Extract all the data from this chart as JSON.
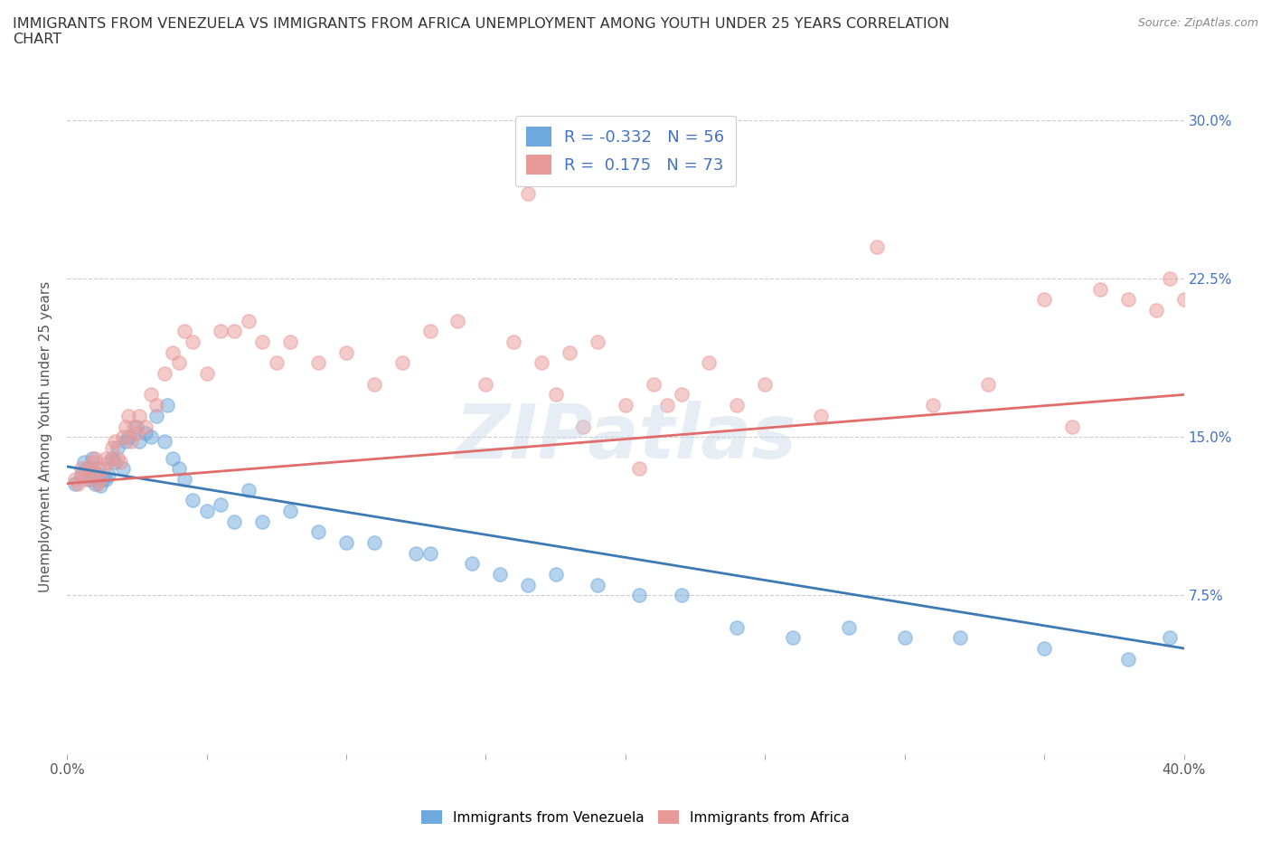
{
  "title": "IMMIGRANTS FROM VENEZUELA VS IMMIGRANTS FROM AFRICA UNEMPLOYMENT AMONG YOUTH UNDER 25 YEARS CORRELATION\nCHART",
  "source": "Source: ZipAtlas.com",
  "ylabel": "Unemployment Among Youth under 25 years",
  "watermark": "ZIPatlas",
  "R_venezuela": -0.332,
  "N_venezuela": 56,
  "R_africa": 0.175,
  "N_africa": 73,
  "xlim": [
    0.0,
    0.4
  ],
  "ylim": [
    0.0,
    0.3
  ],
  "xtick_positions": [
    0.0,
    0.05,
    0.1,
    0.15,
    0.2,
    0.25,
    0.3,
    0.35,
    0.4
  ],
  "xtick_labels_shown": {
    "0.0": "0.0%",
    "0.40": "40.0%"
  },
  "yticks": [
    0.075,
    0.15,
    0.225,
    0.3
  ],
  "ytick_labels": [
    "7.5%",
    "15.0%",
    "22.5%",
    "30.0%"
  ],
  "color_venezuela": "#6fa8dc",
  "color_africa": "#ea9999",
  "color_ven_line": "#3d7ab5",
  "color_afr_line": "#e06c6c",
  "legend_label_venezuela": "Immigrants from Venezuela",
  "legend_label_africa": "Immigrants from Africa",
  "ven_x": [
    0.003,
    0.005,
    0.006,
    0.007,
    0.008,
    0.009,
    0.01,
    0.01,
    0.011,
    0.012,
    0.013,
    0.014,
    0.015,
    0.016,
    0.017,
    0.018,
    0.02,
    0.021,
    0.022,
    0.025,
    0.026,
    0.028,
    0.03,
    0.032,
    0.035,
    0.036,
    0.038,
    0.04,
    0.042,
    0.045,
    0.05,
    0.055,
    0.06,
    0.065,
    0.07,
    0.08,
    0.09,
    0.1,
    0.11,
    0.125,
    0.13,
    0.145,
    0.155,
    0.165,
    0.175,
    0.19,
    0.205,
    0.22,
    0.24,
    0.26,
    0.28,
    0.3,
    0.32,
    0.35,
    0.38,
    0.395
  ],
  "ven_y": [
    0.128,
    0.132,
    0.138,
    0.135,
    0.13,
    0.14,
    0.128,
    0.133,
    0.135,
    0.127,
    0.13,
    0.13,
    0.132,
    0.14,
    0.138,
    0.145,
    0.135,
    0.148,
    0.15,
    0.155,
    0.148,
    0.152,
    0.15,
    0.16,
    0.148,
    0.165,
    0.14,
    0.135,
    0.13,
    0.12,
    0.115,
    0.118,
    0.11,
    0.125,
    0.11,
    0.115,
    0.105,
    0.1,
    0.1,
    0.095,
    0.095,
    0.09,
    0.085,
    0.08,
    0.085,
    0.08,
    0.075,
    0.075,
    0.06,
    0.055,
    0.06,
    0.055,
    0.055,
    0.05,
    0.045,
    0.055
  ],
  "afr_x": [
    0.003,
    0.004,
    0.005,
    0.006,
    0.007,
    0.008,
    0.009,
    0.01,
    0.01,
    0.011,
    0.012,
    0.013,
    0.014,
    0.015,
    0.016,
    0.017,
    0.018,
    0.019,
    0.02,
    0.021,
    0.022,
    0.023,
    0.024,
    0.025,
    0.026,
    0.028,
    0.03,
    0.032,
    0.035,
    0.038,
    0.04,
    0.042,
    0.045,
    0.05,
    0.055,
    0.06,
    0.065,
    0.07,
    0.075,
    0.08,
    0.09,
    0.1,
    0.11,
    0.12,
    0.13,
    0.14,
    0.15,
    0.16,
    0.165,
    0.17,
    0.18,
    0.19,
    0.2,
    0.21,
    0.22,
    0.23,
    0.24,
    0.25,
    0.27,
    0.29,
    0.31,
    0.33,
    0.35,
    0.36,
    0.37,
    0.38,
    0.39,
    0.395,
    0.4,
    0.205,
    0.215,
    0.175,
    0.185
  ],
  "afr_y": [
    0.13,
    0.128,
    0.135,
    0.132,
    0.13,
    0.135,
    0.138,
    0.133,
    0.14,
    0.128,
    0.13,
    0.135,
    0.14,
    0.138,
    0.145,
    0.148,
    0.14,
    0.138,
    0.15,
    0.155,
    0.16,
    0.148,
    0.155,
    0.152,
    0.16,
    0.155,
    0.17,
    0.165,
    0.18,
    0.19,
    0.185,
    0.2,
    0.195,
    0.18,
    0.2,
    0.2,
    0.205,
    0.195,
    0.185,
    0.195,
    0.185,
    0.19,
    0.175,
    0.185,
    0.2,
    0.205,
    0.175,
    0.195,
    0.265,
    0.185,
    0.19,
    0.195,
    0.165,
    0.175,
    0.17,
    0.185,
    0.165,
    0.175,
    0.16,
    0.24,
    0.165,
    0.175,
    0.215,
    0.155,
    0.22,
    0.215,
    0.21,
    0.225,
    0.215,
    0.135,
    0.165,
    0.17,
    0.155
  ]
}
